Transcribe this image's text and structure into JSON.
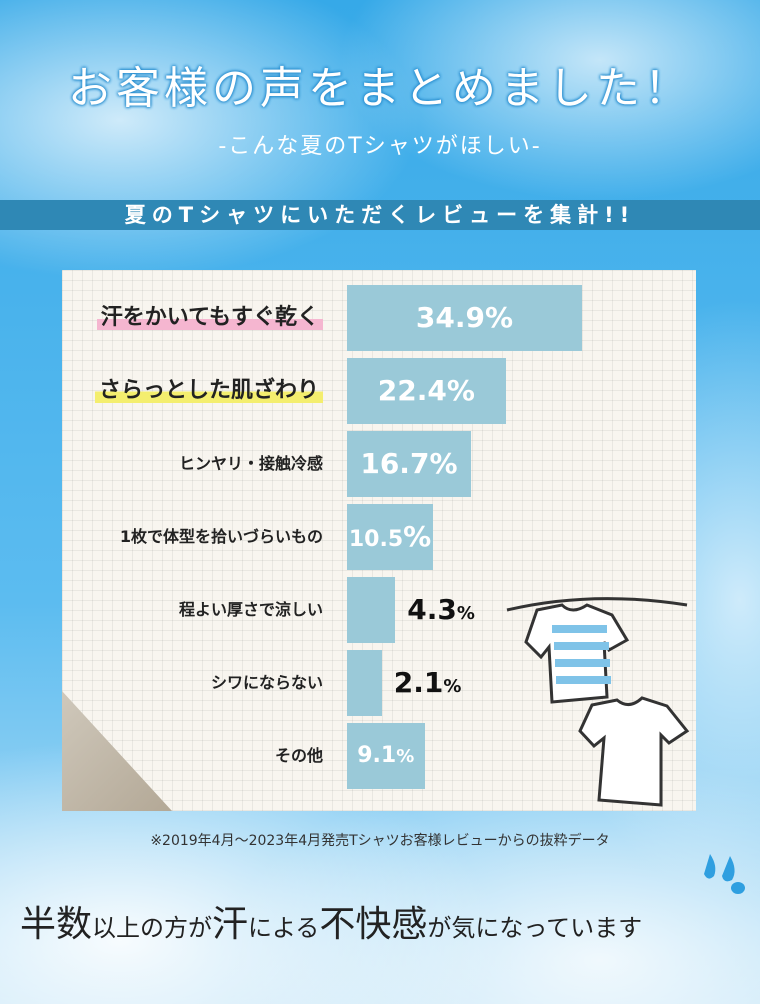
{
  "header": {
    "title": "お客様の声をまとめました！",
    "subtitle": "-こんな夏のTシャツがほしい-",
    "band": "夏のTシャツにいただくレビューを集計!!"
  },
  "chart_data": {
    "type": "bar",
    "orientation": "horizontal",
    "categories": [
      "汗をかいてもすぐ乾く",
      "さらっとした肌ざわり",
      "ヒンヤリ・接触冷感",
      "1枚で体型を拾いづらいもの",
      "程よい厚さで涼しい",
      "シワにならない",
      "その他"
    ],
    "values": [
      34.9,
      22.4,
      16.7,
      10.5,
      4.3,
      2.1,
      9.1
    ],
    "value_labels": [
      "34.9%",
      "22.4%",
      "16.7%",
      "10.5%",
      "4.3%",
      "2.1%",
      "9.1%"
    ],
    "unit": "%",
    "bar_color": "#9ac9d8",
    "highlight_colors": [
      "#f5b6d0",
      "#f4ee6e"
    ]
  },
  "footnote": "※2019年4月～2023年4月発売Tシャツお客様レビューからの抜粋データ",
  "conclusion": {
    "p1": "半数",
    "p2": "以上の方が",
    "p3": "汗",
    "p4": "による",
    "p5": "不快感",
    "p6": "が気になっています"
  }
}
